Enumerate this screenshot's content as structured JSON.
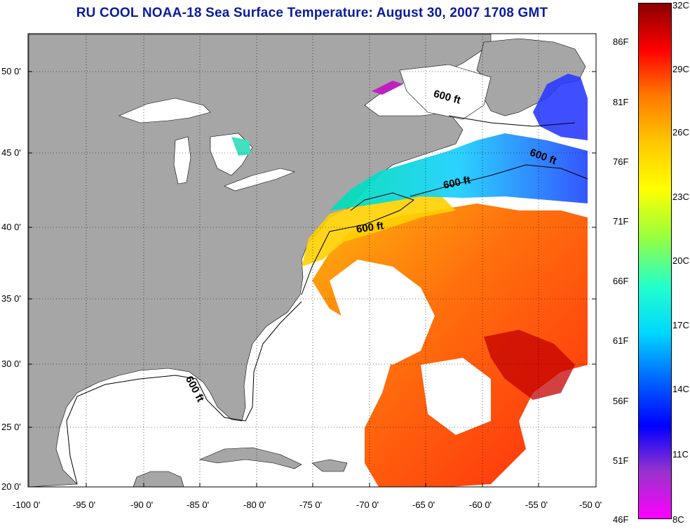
{
  "title": "RU COOL  NOAA-18  Sea Surface Temperature:  August 30, 2007 1708 GMT",
  "lat_labels": [
    "50 0'",
    "45 0'",
    "40 0'",
    "35 0'",
    "30 0'",
    "25 0'",
    "20 0'"
  ],
  "lon_labels": [
    "-100 0'",
    "-95 0'",
    "-90 0'",
    "-85 0'",
    "-80 0'",
    "-75 0'",
    "-70 0'",
    "-65 0'",
    "-60 0'",
    "-55 0'",
    "-50 0'"
  ],
  "colorbar": {
    "fahrenheit_labels": [
      "86F",
      "81F",
      "76F",
      "71F",
      "66F",
      "61F",
      "56F",
      "51F",
      "46F"
    ],
    "celsius_labels": [
      "32C",
      "29C",
      "26C",
      "23C",
      "20C",
      "17C",
      "14C",
      "11C",
      "8C"
    ],
    "colors": [
      "#8b0000",
      "#ff0000",
      "#ff7a00",
      "#ffc800",
      "#ffff00",
      "#9cff3a",
      "#22ffcc",
      "#00d8ff",
      "#0066ff",
      "#0000ff",
      "#9933cc",
      "#ff00ff"
    ]
  },
  "isobath_labels": [
    "600 ft",
    "600 ft",
    "600 ft",
    "600 ft"
  ],
  "colors": {
    "land": "#a6a6a6",
    "cloud": "#ffffff",
    "title": "#0b1b9e"
  }
}
